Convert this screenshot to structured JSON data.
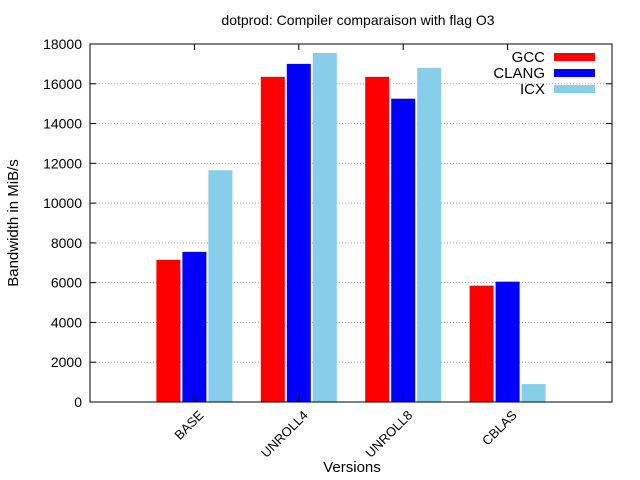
{
  "chart_data": {
    "type": "bar",
    "title": "dotprod: Compiler comparaison with flag O3",
    "xlabel": "Versions",
    "ylabel": "Bandwidth in MiB/s",
    "ylim": [
      0,
      18000
    ],
    "yticks": [
      0,
      2000,
      4000,
      6000,
      8000,
      10000,
      12000,
      14000,
      16000,
      18000
    ],
    "categories": [
      "BASE",
      "UNROLL4",
      "UNROLL8",
      "CBLAS"
    ],
    "series": [
      {
        "name": "GCC",
        "color": "#ff0000",
        "values": [
          7150,
          16350,
          16350,
          5850
        ]
      },
      {
        "name": "CLANG",
        "color": "#0000ff",
        "values": [
          7550,
          17000,
          15250,
          6050
        ]
      },
      {
        "name": "ICX",
        "color": "#87ceeb",
        "values": [
          11650,
          17550,
          16800,
          900
        ]
      }
    ],
    "grid": true,
    "legend_position": "top-right"
  }
}
